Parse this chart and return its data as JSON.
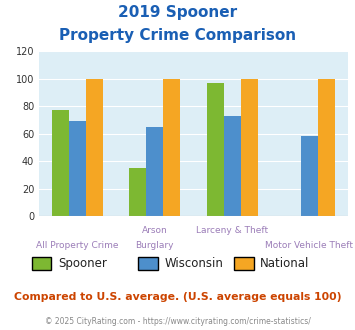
{
  "title_line1": "2019 Spooner",
  "title_line2": "Property Crime Comparison",
  "top_labels": [
    "",
    "Arson",
    "Larceny & Theft",
    ""
  ],
  "bottom_labels": [
    "All Property Crime",
    "Burglary",
    "",
    "Motor Vehicle Theft"
  ],
  "series": {
    "Spooner": [
      77,
      35,
      97,
      0
    ],
    "Wisconsin": [
      69,
      65,
      73,
      58
    ],
    "National": [
      100,
      100,
      100,
      100
    ]
  },
  "colors": {
    "Spooner": "#7db832",
    "Wisconsin": "#4d8fcc",
    "National": "#f5a623"
  },
  "ylim": [
    0,
    120
  ],
  "yticks": [
    0,
    20,
    40,
    60,
    80,
    100,
    120
  ],
  "title_color": "#1a5fb4",
  "axis_bg_color": "#ddeef6",
  "fig_bg_color": "#ffffff",
  "grid_color": "#ffffff",
  "xlabel_color": "#9b7db8",
  "footer_text": "Compared to U.S. average. (U.S. average equals 100)",
  "footer_color": "#cc4400",
  "credit_text": "© 2025 CityRating.com - https://www.cityrating.com/crime-statistics/",
  "credit_color": "#888888",
  "bar_width": 0.22
}
